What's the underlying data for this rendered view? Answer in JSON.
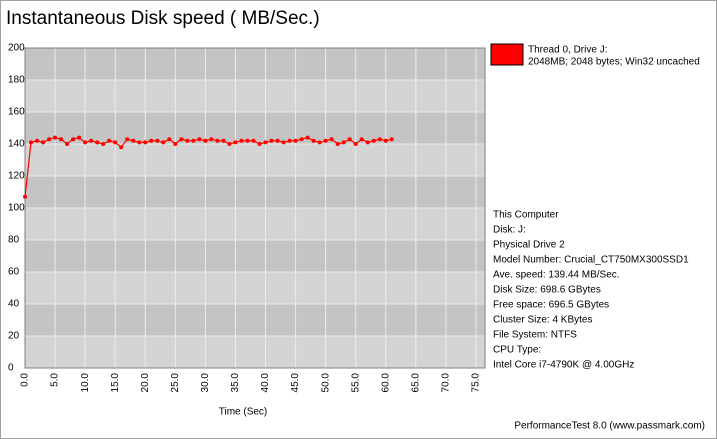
{
  "chart_data": {
    "type": "line",
    "title": "Instantaneous Disk speed ( MB/Sec.)",
    "x_label": "Time (Sec)",
    "x": [
      0,
      1,
      2,
      3,
      4,
      5,
      6,
      7,
      8,
      9,
      10,
      11,
      12,
      13,
      14,
      15,
      16,
      17,
      18,
      19,
      20,
      21,
      22,
      23,
      24,
      25,
      26,
      27,
      28,
      29,
      30,
      31,
      32,
      33,
      34,
      35,
      36,
      37,
      38,
      39,
      40,
      41,
      42,
      43,
      44,
      45,
      46,
      47,
      48,
      49,
      50,
      51,
      52,
      53,
      54,
      55,
      56,
      57,
      58,
      59,
      60,
      61
    ],
    "series": [
      {
        "name": "Thread 0, Drive J:",
        "detail": "2048MB; 2048 bytes; Win32 uncached",
        "color": "#ff0000",
        "values": [
          107,
          141,
          142,
          141,
          143,
          144,
          143,
          140,
          143,
          144,
          141,
          142,
          141,
          140,
          142,
          141,
          138,
          143,
          142,
          141,
          141,
          142,
          142,
          141,
          143,
          140,
          143,
          142,
          142,
          143,
          142,
          143,
          142,
          142,
          140,
          141,
          142,
          142,
          142,
          140,
          141,
          142,
          142,
          141,
          142,
          142,
          143,
          144,
          142,
          141,
          142,
          143,
          140,
          141,
          143,
          140,
          143,
          141,
          142,
          143,
          142,
          143
        ]
      }
    ],
    "xlim": [
      0,
      76.5
    ],
    "xticks": [
      {
        "value": 0,
        "label": "0.0"
      },
      {
        "value": 5,
        "label": "5.0"
      },
      {
        "value": 10,
        "label": "10.0"
      },
      {
        "value": 15,
        "label": "15.0"
      },
      {
        "value": 20,
        "label": "20.0"
      },
      {
        "value": 25,
        "label": "25.0"
      },
      {
        "value": 30,
        "label": "30.0"
      },
      {
        "value": 35,
        "label": "35.0"
      },
      {
        "value": 40,
        "label": "40.0"
      },
      {
        "value": 45,
        "label": "45.0"
      },
      {
        "value": 50,
        "label": "50.0"
      },
      {
        "value": 55,
        "label": "55.0"
      },
      {
        "value": 60,
        "label": "60.0"
      },
      {
        "value": 65,
        "label": "65.0"
      },
      {
        "value": 70,
        "label": "70.0"
      },
      {
        "value": 75,
        "label": "75.0"
      }
    ],
    "ylim": [
      0,
      200
    ],
    "yticks": [
      0,
      20,
      40,
      60,
      80,
      100,
      120,
      140,
      160,
      180,
      200
    ],
    "grid": true,
    "info": [
      "This Computer",
      "Disk: J:",
      "Physical Drive 2",
      "Model Number: Crucial_CT750MX300SSD1",
      "Ave. speed: 139.44 MB/Sec.",
      "Disk Size: 698.6 GBytes",
      "Free space: 696.5 GBytes",
      "Cluster Size: 4 KBytes",
      "File System: NTFS",
      "CPU Type:",
      "Intel Core i7-4790K @ 4.00GHz"
    ],
    "footer": "PerformanceTest 8.0 (www.passmark.com)"
  }
}
